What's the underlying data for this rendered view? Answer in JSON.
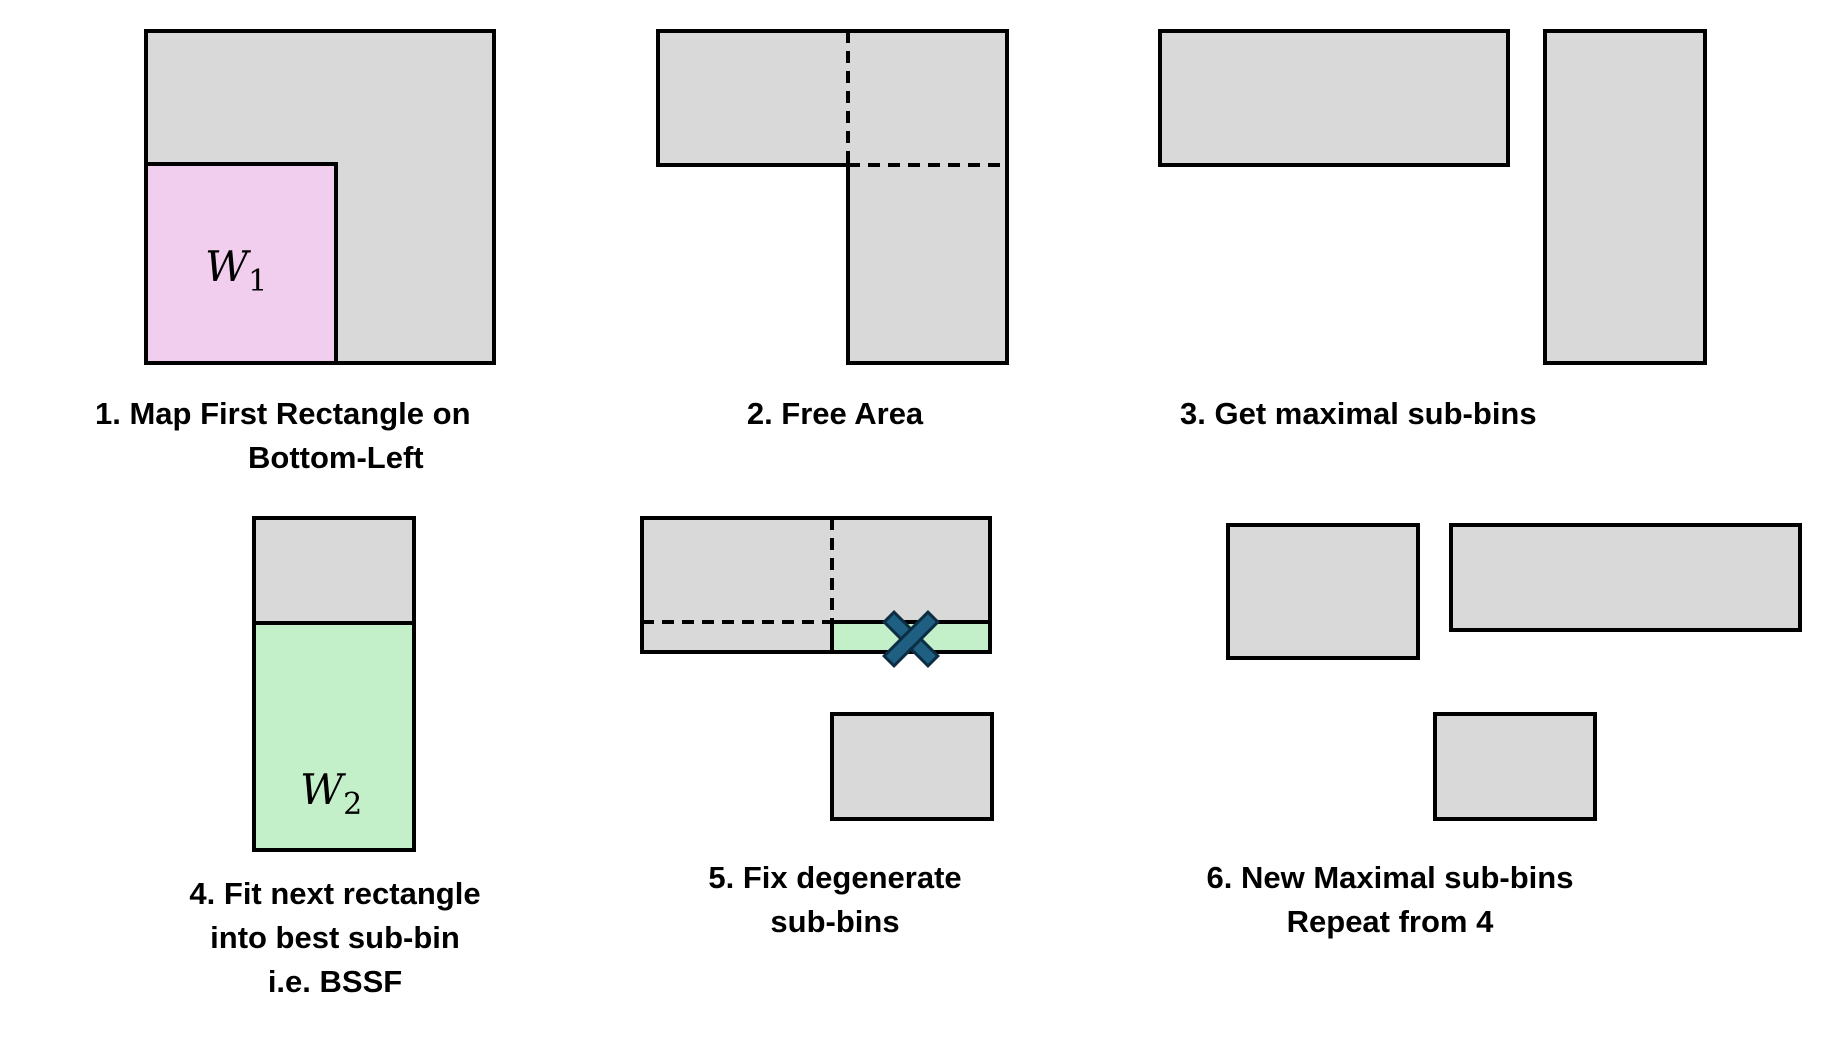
{
  "colors": {
    "bin_fill": "#d9d9d9",
    "outline": "#000000",
    "rect1_fill": "#f2ceee",
    "rect2_fill": "#c3f0c8",
    "cross_fill": "#1f5f82",
    "cross_stroke": "#0c2d42"
  },
  "labels": {
    "w1_base": "W",
    "w1_sub": "1",
    "w2_base": "W",
    "w2_sub": "2"
  },
  "steps": [
    {
      "lines": [
        "1.   Map First Rectangle on",
        "Bottom-Left"
      ]
    },
    {
      "lines": [
        "2. Free Area"
      ]
    },
    {
      "lines": [
        "3. Get maximal sub-bins"
      ]
    },
    {
      "lines": [
        "4. Fit next rectangle",
        "into best sub-bin",
        "i.e. BSSF"
      ]
    },
    {
      "lines": [
        "5. Fix degenerate",
        "sub-bins"
      ]
    },
    {
      "lines": [
        "6. New Maximal sub-bins",
        "Repeat from 4"
      ]
    }
  ],
  "icons": {
    "reject_marker": "x-cross-icon"
  }
}
